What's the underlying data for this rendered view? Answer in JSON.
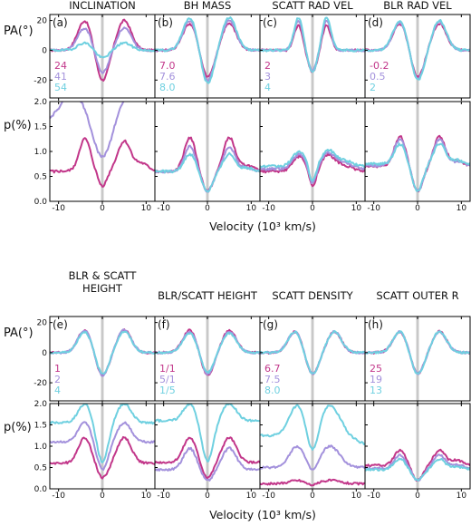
{
  "colors": {
    "series1": "#c2378a",
    "series2": "#a391dc",
    "series3": "#6fd0e0",
    "zero_band": "#c8c8c8",
    "axis": "#000000"
  },
  "chart_data": [
    {
      "type": "line",
      "row": "top",
      "grid": false,
      "x_axis": {
        "label": "Velocity (10³ km/s)",
        "xlim": [
          -12,
          12
        ],
        "ticks": [
          -10,
          0,
          10
        ]
      },
      "pa_axis": {
        "label": "PA(°)",
        "ylim": [
          -32,
          24
        ],
        "ticks": [
          -20,
          0,
          20
        ]
      },
      "p_axis": {
        "label": "p(%)",
        "ylim": [
          0,
          2
        ],
        "ticks": [
          0.0,
          0.5,
          1.0,
          1.5,
          2.0
        ]
      },
      "panels": [
        {
          "letter": "(a)",
          "title": [
            "INCLINATION"
          ],
          "values": [
            "24",
            "41",
            "54"
          ],
          "pa": {
            "type": "dw",
            "amp": [
              20,
              15,
              5
            ]
          },
          "p": {
            "type": "inc",
            "base": [
              0.62,
              2.4,
              3.0
            ]
          }
        },
        {
          "letter": "(b)",
          "title": [
            "BH MASS"
          ],
          "values": [
            "7.0",
            "7.6",
            "8.0"
          ],
          "pa": {
            "type": "dw",
            "amp": [
              18,
              20,
              22
            ]
          },
          "p": {
            "type": "dh",
            "base": [
              0.6,
              0.6,
              0.6
            ],
            "peak": [
              1.28,
              1.1,
              0.95
            ]
          }
        },
        {
          "letter": "(c)",
          "title": [
            "SCATT RAD VEL"
          ],
          "values": [
            "2",
            "3",
            "4"
          ],
          "pa": {
            "type": "narrow",
            "amp": [
              18,
              20,
              22
            ]
          },
          "p": {
            "type": "flat",
            "base": [
              0.6,
              0.65,
              0.7
            ]
          }
        },
        {
          "letter": "(d)",
          "title": [
            "BLR RAD VEL"
          ],
          "values": [
            "-0.2",
            "0.5",
            "2"
          ],
          "pa": {
            "type": "dw",
            "amp": [
              18,
              19,
              20
            ]
          },
          "p": {
            "type": "dh",
            "base": [
              0.7,
              0.72,
              0.75
            ],
            "peak": [
              1.3,
              1.25,
              1.15
            ]
          }
        }
      ]
    },
    {
      "type": "line",
      "row": "bottom",
      "grid": false,
      "x_axis": {
        "label": "Velocity (10³ km/s)",
        "xlim": [
          -12,
          12
        ],
        "ticks": [
          -10,
          0,
          10
        ]
      },
      "pa_axis": {
        "label": "PA(°)",
        "ylim": [
          -32,
          24
        ],
        "ticks": [
          -20,
          0,
          20
        ]
      },
      "p_axis": {
        "label": "p(%)",
        "ylim": [
          0,
          2
        ],
        "ticks": [
          0.0,
          0.5,
          1.0,
          1.5,
          2.0
        ]
      },
      "panels": [
        {
          "letter": "(e)",
          "title": [
            "BLR & SCATT",
            "HEIGHT"
          ],
          "values": [
            "1",
            "2",
            "4"
          ],
          "pa": {
            "type": "dw",
            "amp": [
              15,
              15,
              14
            ]
          },
          "p": {
            "type": "layer",
            "base": [
              0.6,
              1.1,
              1.55
            ],
            "peak": [
              1.2,
              1.55,
              2.0
            ]
          }
        },
        {
          "letter": "(f)",
          "title": [
            "BLR/SCATT HEIGHT"
          ],
          "values": [
            "1/1",
            "5/1",
            "1/5"
          ],
          "pa": {
            "type": "dw",
            "amp": [
              15,
              14,
              13
            ]
          },
          "p": {
            "type": "layer",
            "base": [
              0.62,
              0.45,
              1.6
            ],
            "peak": [
              1.2,
              0.95,
              2.0
            ]
          }
        },
        {
          "letter": "(g)",
          "title": [
            "SCATT DENSITY"
          ],
          "values": [
            "6.7",
            "7.5",
            "8.0"
          ],
          "pa": {
            "type": "dw",
            "amp": [
              14,
              14,
              14
            ]
          },
          "p": {
            "type": "dens",
            "base": [
              0.12,
              0.5,
              1.25
            ],
            "peak": [
              0.2,
              1.0,
              1.95
            ]
          }
        },
        {
          "letter": "(h)",
          "title": [
            "SCATT OUTER R"
          ],
          "values": [
            "25",
            "19",
            "13"
          ],
          "pa": {
            "type": "dw",
            "amp": [
              14,
              14,
              14
            ]
          },
          "p": {
            "type": "dh",
            "base": [
              0.55,
              0.48,
              0.45
            ],
            "peak": [
              0.9,
              0.8,
              0.7
            ]
          }
        }
      ]
    }
  ]
}
